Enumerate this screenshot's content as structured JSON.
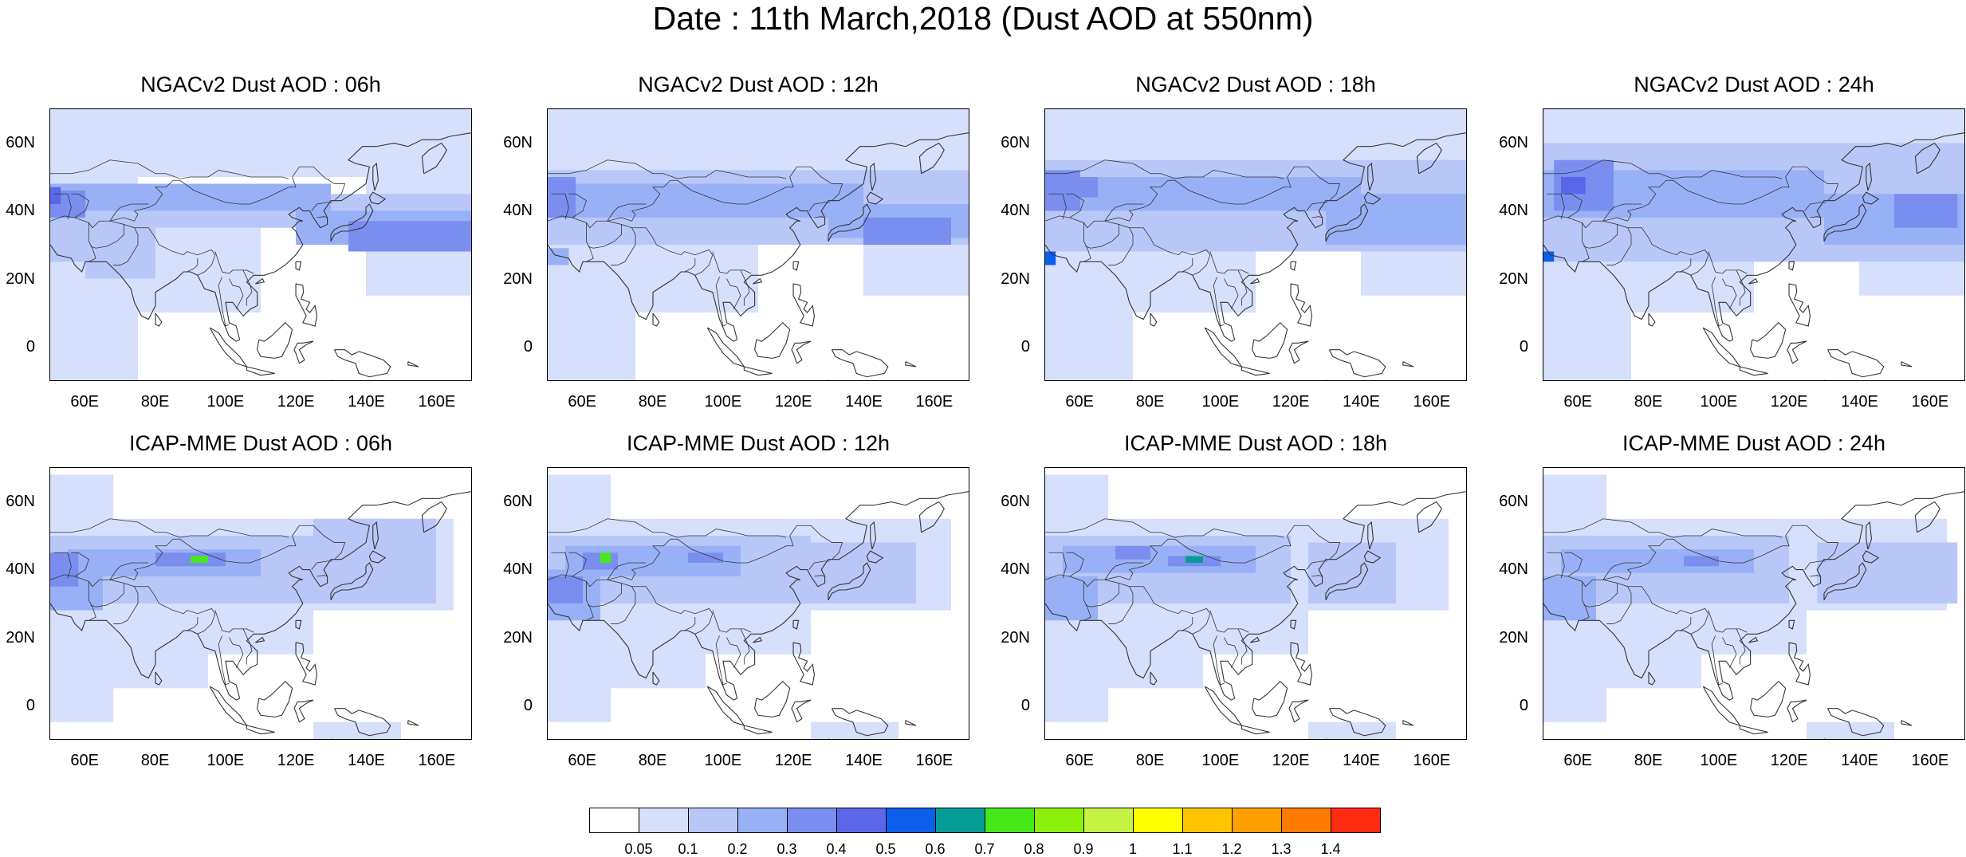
{
  "title": "Date : 11th March,2018 (Dust AOD at 550nm)",
  "lat_labels": [
    "60N",
    "40N",
    "20N",
    "0"
  ],
  "lon_labels": [
    "60E",
    "80E",
    "100E",
    "120E",
    "140E",
    "160E"
  ],
  "panels": [
    {
      "title": "NGACv2 Dust AOD : 06h",
      "model": "NGACv2",
      "hour": "06h"
    },
    {
      "title": "NGACv2 Dust AOD : 12h",
      "model": "NGACv2",
      "hour": "12h"
    },
    {
      "title": "NGACv2 Dust AOD : 18h",
      "model": "NGACv2",
      "hour": "18h"
    },
    {
      "title": "NGACv2 Dust AOD : 24h",
      "model": "NGACv2",
      "hour": "24h"
    },
    {
      "title": "ICAP-MME Dust AOD : 06h",
      "model": "ICAP-MME",
      "hour": "06h"
    },
    {
      "title": "ICAP-MME Dust AOD : 12h",
      "model": "ICAP-MME",
      "hour": "12h"
    },
    {
      "title": "ICAP-MME Dust AOD : 18h",
      "model": "ICAP-MME",
      "hour": "18h"
    },
    {
      "title": "ICAP-MME Dust AOD : 24h",
      "model": "ICAP-MME",
      "hour": "24h"
    }
  ],
  "colorbar": {
    "labels": [
      "0.05",
      "0.1",
      "0.2",
      "0.3",
      "0.4",
      "0.5",
      "0.6",
      "0.7",
      "0.8",
      "0.9",
      "1",
      "1.1",
      "1.2",
      "1.3",
      "1.4"
    ],
    "colors": [
      "#ffffff",
      "#d6dffb",
      "#b8c7f8",
      "#98b0f5",
      "#7a8ef0",
      "#5c66ea",
      "#0b5fea",
      "#069c96",
      "#47e81a",
      "#8cf00b",
      "#c4f343",
      "#ffff00",
      "#ffc400",
      "#ffa000",
      "#ff7a00",
      "#ff2b12"
    ]
  },
  "colors": {
    "land_outline": "#333333",
    "text": "#000000"
  }
}
